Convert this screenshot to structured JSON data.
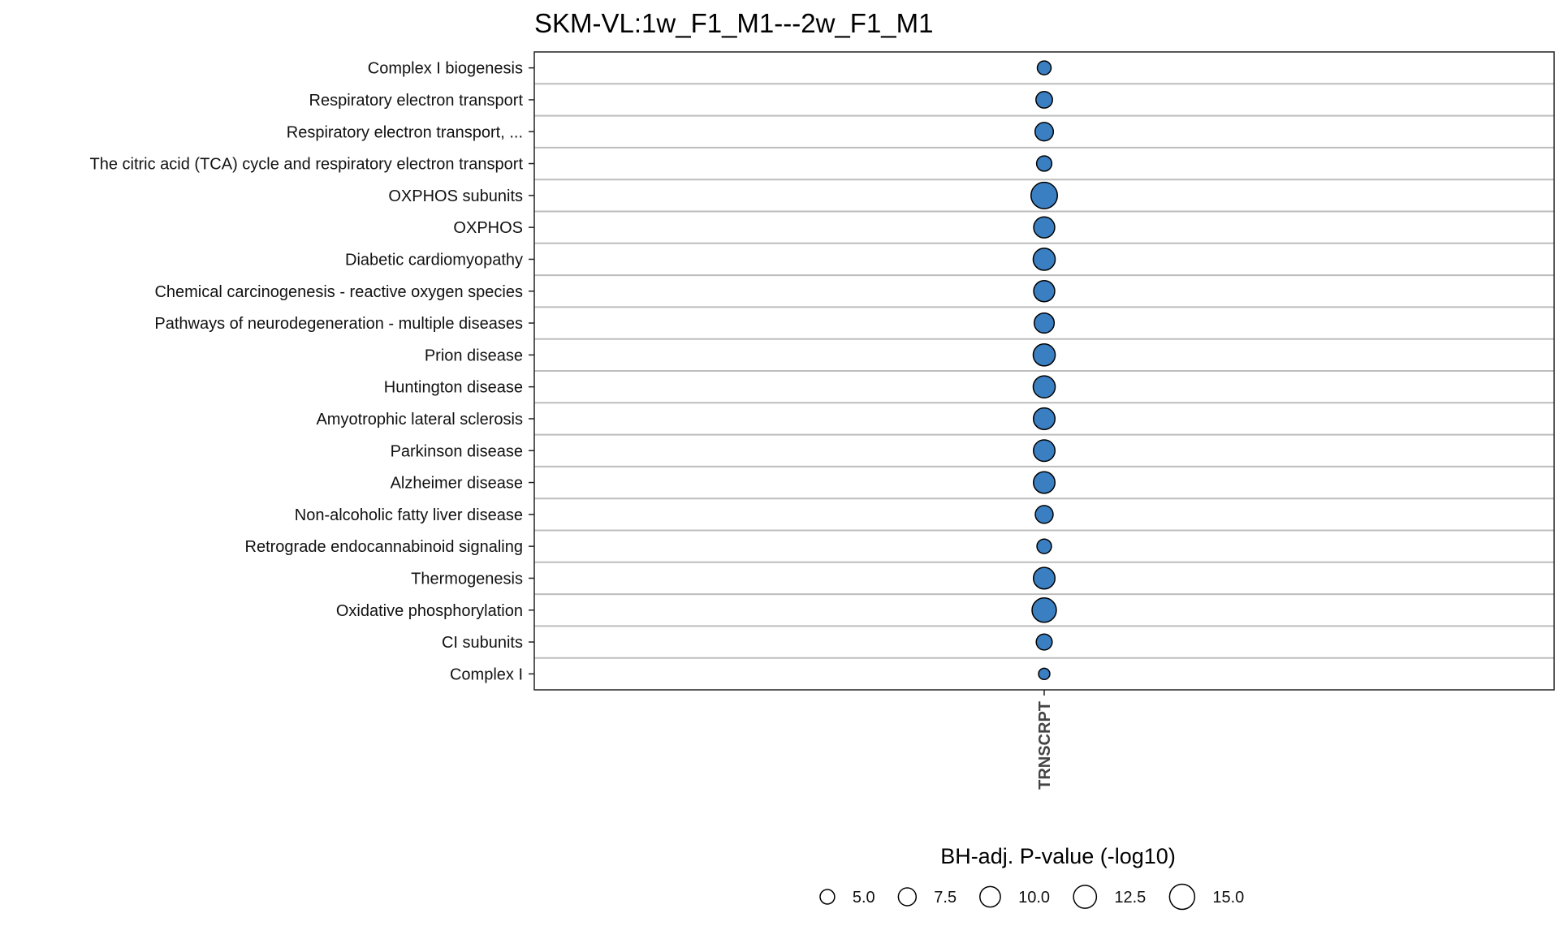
{
  "chart_data": {
    "type": "scatter",
    "title": "SKM-VL:1w_F1_M1---2w_F1_M1",
    "x_categories": [
      "TRNSCRPT"
    ],
    "y_categories": [
      "Complex I biogenesis",
      "Respiratory electron transport",
      "Respiratory electron transport, ...",
      "The citric acid (TCA) cycle and respiratory electron transport",
      "OXPHOS subunits",
      "OXPHOS",
      "Diabetic cardiomyopathy",
      "Chemical carcinogenesis - reactive oxygen species",
      "Pathways of neurodegeneration - multiple diseases",
      "Prion disease",
      "Huntington disease",
      "Amyotrophic lateral sclerosis",
      "Parkinson disease",
      "Alzheimer disease",
      "Non-alcoholic fatty liver disease",
      "Retrograde endocannabinoid signaling",
      "Thermogenesis",
      "Oxidative phosphorylation",
      "CI subunits",
      "Complex I"
    ],
    "points": [
      {
        "x": "TRNSCRPT",
        "y": "Complex I biogenesis",
        "size_value": 4.5
      },
      {
        "x": "TRNSCRPT",
        "y": "Respiratory electron transport",
        "size_value": 6.5
      },
      {
        "x": "TRNSCRPT",
        "y": "Respiratory electron transport, ...",
        "size_value": 8.0
      },
      {
        "x": "TRNSCRPT",
        "y": "The citric acid (TCA) cycle and respiratory electron transport",
        "size_value": 5.5
      },
      {
        "x": "TRNSCRPT",
        "y": "OXPHOS subunits",
        "size_value": 16.5
      },
      {
        "x": "TRNSCRPT",
        "y": "OXPHOS",
        "size_value": 10.5
      },
      {
        "x": "TRNSCRPT",
        "y": "Diabetic cardiomyopathy",
        "size_value": 11.5
      },
      {
        "x": "TRNSCRPT",
        "y": "Chemical carcinogenesis - reactive oxygen species",
        "size_value": 10.5
      },
      {
        "x": "TRNSCRPT",
        "y": "Pathways of neurodegeneration - multiple diseases",
        "size_value": 9.5
      },
      {
        "x": "TRNSCRPT",
        "y": "Prion disease",
        "size_value": 11.5
      },
      {
        "x": "TRNSCRPT",
        "y": "Huntington disease",
        "size_value": 11.5
      },
      {
        "x": "TRNSCRPT",
        "y": "Amyotrophic lateral sclerosis",
        "size_value": 11.0
      },
      {
        "x": "TRNSCRPT",
        "y": "Parkinson disease",
        "size_value": 11.0
      },
      {
        "x": "TRNSCRPT",
        "y": "Alzheimer disease",
        "size_value": 11.0
      },
      {
        "x": "TRNSCRPT",
        "y": "Non-alcoholic fatty liver disease",
        "size_value": 7.5
      },
      {
        "x": "TRNSCRPT",
        "y": "Retrograde endocannabinoid signaling",
        "size_value": 5.0
      },
      {
        "x": "TRNSCRPT",
        "y": "Thermogenesis",
        "size_value": 11.0
      },
      {
        "x": "TRNSCRPT",
        "y": "Oxidative phosphorylation",
        "size_value": 14.0
      },
      {
        "x": "TRNSCRPT",
        "y": "CI subunits",
        "size_value": 6.0
      },
      {
        "x": "TRNSCRPT",
        "y": "Complex I",
        "size_value": 3.0
      }
    ],
    "size_legend": {
      "title": "BH-adj. P-value (-log10)",
      "values": [
        5.0,
        7.5,
        10.0,
        12.5,
        15.0
      ],
      "labels": [
        "5.0",
        "7.5",
        "10.0",
        "12.5",
        "15.0"
      ]
    },
    "point_color": "#3a7fc1",
    "point_stroke": "#000000",
    "grid": true,
    "legend_position": "bottom"
  }
}
